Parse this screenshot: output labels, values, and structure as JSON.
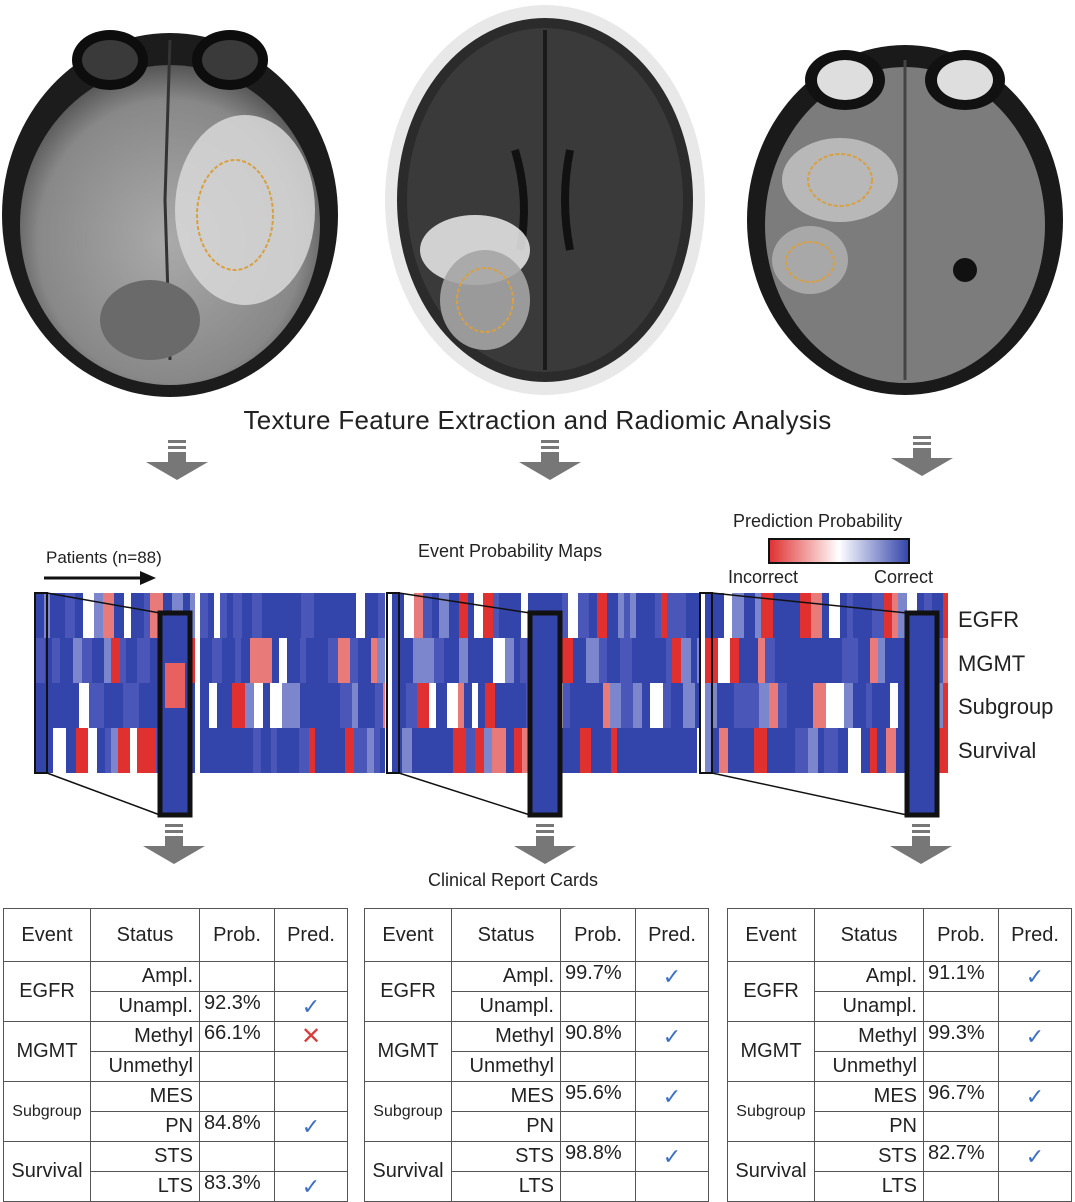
{
  "title": "Texture Feature Extraction and Radiomic Analysis",
  "heatmap": {
    "title": "Event Probability Maps",
    "patients_label": "Patients (n=88)",
    "legend_title": "Prediction Probability",
    "legend_low": "Incorrect",
    "legend_high": "Correct",
    "rows": [
      "EGFR",
      "MGMT",
      "Subgroup",
      "Survival"
    ]
  },
  "cards_title": "Clinical Report Cards",
  "colors": {
    "correct": "#3344aa",
    "incorrect": "#e03030",
    "check": "#3d6fc4",
    "cross": "#d93a3a"
  },
  "table_headers": {
    "event": "Event",
    "status": "Status",
    "prob": "Prob.",
    "pred": "Pred."
  },
  "cards": [
    {
      "rows": [
        {
          "event": "EGFR",
          "status": "Ampl.",
          "prob": "",
          "pred": ""
        },
        {
          "event": "",
          "status": "Unampl.",
          "prob": "92.3%",
          "pred": "check"
        },
        {
          "event": "MGMT",
          "status": "Methyl",
          "prob": "66.1%",
          "pred": "cross"
        },
        {
          "event": "",
          "status": "Unmethyl",
          "prob": "",
          "pred": ""
        },
        {
          "event": "Subgroup",
          "status": "MES",
          "prob": "",
          "pred": ""
        },
        {
          "event": "",
          "status": "PN",
          "prob": "84.8%",
          "pred": "check"
        },
        {
          "event": "Survival",
          "status": "STS",
          "prob": "",
          "pred": ""
        },
        {
          "event": "",
          "status": "LTS",
          "prob": "83.3%",
          "pred": "check"
        }
      ]
    },
    {
      "rows": [
        {
          "event": "EGFR",
          "status": "Ampl.",
          "prob": "99.7%",
          "pred": "check"
        },
        {
          "event": "",
          "status": "Unampl.",
          "prob": "",
          "pred": ""
        },
        {
          "event": "MGMT",
          "status": "Methyl",
          "prob": "90.8%",
          "pred": "check"
        },
        {
          "event": "",
          "status": "Unmethyl",
          "prob": "",
          "pred": ""
        },
        {
          "event": "Subgroup",
          "status": "MES",
          "prob": "95.6%",
          "pred": "check"
        },
        {
          "event": "",
          "status": "PN",
          "prob": "",
          "pred": ""
        },
        {
          "event": "Survival",
          "status": "STS",
          "prob": "98.8%",
          "pred": "check"
        },
        {
          "event": "",
          "status": "LTS",
          "prob": "",
          "pred": ""
        }
      ]
    },
    {
      "rows": [
        {
          "event": "EGFR",
          "status": "Ampl.",
          "prob": "91.1%",
          "pred": "check"
        },
        {
          "event": "",
          "status": "Unampl.",
          "prob": "",
          "pred": ""
        },
        {
          "event": "MGMT",
          "status": "Methyl",
          "prob": "99.3%",
          "pred": "check"
        },
        {
          "event": "",
          "status": "Unmethyl",
          "prob": "",
          "pred": ""
        },
        {
          "event": "Subgroup",
          "status": "MES",
          "prob": "96.7%",
          "pred": "check"
        },
        {
          "event": "",
          "status": "PN",
          "prob": "",
          "pred": ""
        },
        {
          "event": "Survival",
          "status": "STS",
          "prob": "82.7%",
          "pred": "check"
        },
        {
          "event": "",
          "status": "LTS",
          "prob": "",
          "pred": ""
        }
      ]
    }
  ]
}
